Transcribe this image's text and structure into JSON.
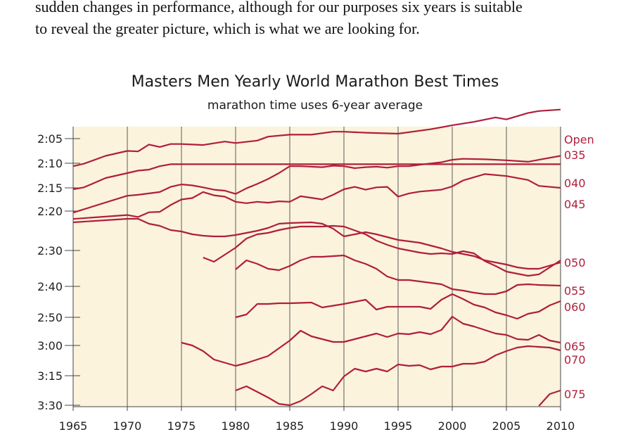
{
  "intro_text": [
    "sudden changes in performance, although for our purposes six years is suitable",
    "to reveal the greater picture, which is what we are looking for."
  ],
  "chart_data": {
    "type": "line",
    "title": "Masters Men Yearly World Marathon Best Times",
    "subtitle": "marathon time uses 6-year average",
    "xlabel": "",
    "ylabel": "",
    "xlim": [
      1965,
      2010
    ],
    "x_ticks": [
      "1965",
      "1970",
      "1975",
      "1980",
      "1985",
      "1990",
      "1995",
      "2000",
      "2005",
      "2010"
    ],
    "y_ticks": [
      {
        "label": "2:05",
        "minutes": 125
      },
      {
        "label": "2:10",
        "minutes": 130
      },
      {
        "label": "2:15",
        "minutes": 135
      },
      {
        "label": "2:20",
        "minutes": 140
      },
      {
        "label": "2:30",
        "minutes": 150
      },
      {
        "label": "2:40",
        "minutes": 160
      },
      {
        "label": "2:50",
        "minutes": 170
      },
      {
        "label": "3:00",
        "minutes": 180
      },
      {
        "label": "3:15",
        "minutes": 195
      },
      {
        "label": "3:30",
        "minutes": 210
      }
    ],
    "y_scale_note": "reciprocal (pace) scale, faster at top",
    "grid": "vertical",
    "legend": "labels at right end of lines",
    "colors": {
      "line": "#b01e3c",
      "background": "#fbf3dc",
      "axis": "#555555"
    },
    "series": [
      {
        "name": "Open",
        "x": [
          1965,
          1966,
          1968,
          1970,
          1971,
          1972,
          1973,
          1974,
          1975,
          1976,
          1977,
          1979,
          1980,
          1982,
          1983,
          1985,
          1987,
          1989,
          1990,
          1992,
          1995,
          1998,
          2000,
          2002,
          2004,
          2005,
          2007,
          2008,
          2010
        ],
        "y": [
          130.6,
          130.1,
          128.5,
          127.5,
          127.6,
          126.2,
          126.7,
          126.1,
          126.1,
          126.2,
          126.3,
          125.6,
          125.9,
          125.4,
          124.6,
          124.2,
          124.2,
          123.6,
          123.6,
          123.8,
          124.0,
          123.1,
          122.3,
          121.6,
          120.7,
          121.1,
          119.8,
          119.4,
          119.1
        ]
      },
      {
        "name": "035",
        "x": [
          1965,
          1966,
          1968,
          1970,
          1971,
          1972,
          1973,
          1974,
          1975,
          1976,
          1977,
          1978,
          1979,
          1980,
          1981,
          1982,
          1983,
          1984,
          1985,
          1987,
          1988,
          1990,
          1992,
          1993,
          1995,
          1997,
          1998,
          1999,
          2000,
          2001,
          2003,
          2005,
          2007,
          2008,
          2009,
          2010
        ],
        "y": [
          135.3,
          134.9,
          133.0,
          132.0,
          131.5,
          131.3,
          130.6,
          130.2,
          130.2,
          130.2,
          130.2,
          130.2,
          130.2,
          130.2,
          130.2,
          130.2,
          130.2,
          130.2,
          130.2,
          130.2,
          130.2,
          130.2,
          130.2,
          130.2,
          130.2,
          130.2,
          130.2,
          130.2,
          130.2,
          130.2,
          130.2,
          130.2,
          130.2,
          130.2,
          130.2,
          130.2
        ]
      },
      {
        "name": "040",
        "x": [
          1965,
          1970,
          1971,
          1973,
          1974,
          1975,
          1976,
          1977,
          1978,
          1979,
          1980,
          1981,
          1982,
          1983,
          1984,
          1985,
          1986,
          1988,
          1989,
          1990,
          1991,
          1992,
          1993,
          1994,
          1995,
          1996,
          1997,
          1999,
          2000,
          2001,
          2003,
          2005,
          2007,
          2008,
          2010
        ],
        "y": [
          140.4,
          136.7,
          136.5,
          135.9,
          134.8,
          134.3,
          134.5,
          134.9,
          135.4,
          135.6,
          136.3,
          135.1,
          134.2,
          133.2,
          132.0,
          130.6,
          130.6,
          130.8,
          130.5,
          130.6,
          131.0,
          130.8,
          130.7,
          130.9,
          130.6,
          130.6,
          130.3,
          129.8,
          129.3,
          129.1,
          129.2,
          129.4,
          129.7,
          129.3,
          128.5
        ]
      },
      {
        "name": "045",
        "x": [
          1965,
          1970,
          1971,
          1972,
          1973,
          1974,
          1975,
          1976,
          1977,
          1978,
          1979,
          1980,
          1981,
          1982,
          1983,
          1984,
          1985,
          1986,
          1988,
          1989,
          1990,
          1991,
          1992,
          1993,
          1994,
          1995,
          1996,
          1997,
          1999,
          2000,
          2001,
          2003,
          2005,
          2007,
          2008,
          2010
        ],
        "y": [
          142.0,
          141.0,
          141.5,
          140.3,
          140.2,
          138.7,
          137.5,
          137.2,
          135.9,
          136.6,
          136.9,
          138.0,
          138.3,
          138.0,
          138.2,
          137.9,
          138.0,
          136.8,
          137.5,
          136.5,
          135.3,
          134.8,
          135.4,
          134.9,
          134.8,
          136.9,
          136.2,
          135.8,
          135.4,
          134.7,
          133.5,
          132.2,
          132.6,
          133.4,
          134.6,
          135.0
        ]
      }
    ]
  }
}
